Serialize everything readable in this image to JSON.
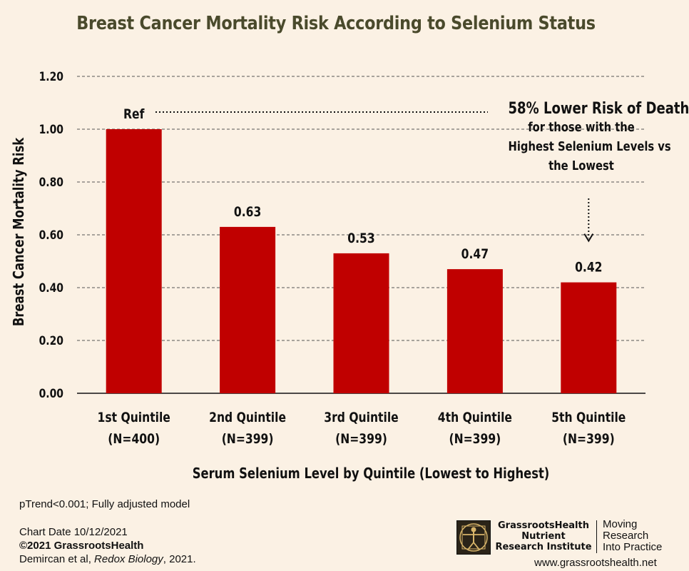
{
  "chart_data": {
    "type": "bar",
    "title": "Breast Cancer Mortality Risk According to Selenium Status",
    "xlabel": "Serum Selenium Level by Quintile (Lowest to Highest)",
    "ylabel": "Breast Cancer Mortality Risk",
    "ylim": [
      0,
      1.2
    ],
    "yticks": [
      "0.00",
      "0.20",
      "0.40",
      "0.60",
      "0.80",
      "1.00",
      "1.20"
    ],
    "grid": true,
    "categories": [
      {
        "name": "1st Quintile",
        "n": "(N=400)"
      },
      {
        "name": "2nd Quintile",
        "n": "(N=399)"
      },
      {
        "name": "3rd Quintile",
        "n": "(N=399)"
      },
      {
        "name": "4th Quintile",
        "n": "(N=399)"
      },
      {
        "name": "5th Quintile",
        "n": "(N=399)"
      }
    ],
    "values": [
      1.0,
      0.63,
      0.53,
      0.47,
      0.42
    ],
    "data_labels": [
      "Ref",
      "0.63",
      "0.53",
      "0.47",
      "0.42"
    ],
    "bar_color": "#c00000",
    "annotation": {
      "headline": "58% Lower Risk of Death",
      "lines": [
        "for those with the",
        "Highest Selenium Levels vs",
        "the Lowest"
      ]
    }
  },
  "footer": {
    "ptrend": "pTrend<0.001; Fully adjusted model",
    "chart_date": "Chart Date 10/12/2021",
    "copyright": "©2021 GrassrootsHealth",
    "citation_prefix": "Demircan et al, ",
    "citation_journal": "Redox Biology",
    "citation_suffix": ", 2021.",
    "logo_lines": [
      "GrassrootsHealth",
      "Nutrient",
      "Research Institute"
    ],
    "tagline": [
      "Moving",
      "Research",
      "Into Practice"
    ],
    "website": "www.grassrootshealth.net"
  }
}
